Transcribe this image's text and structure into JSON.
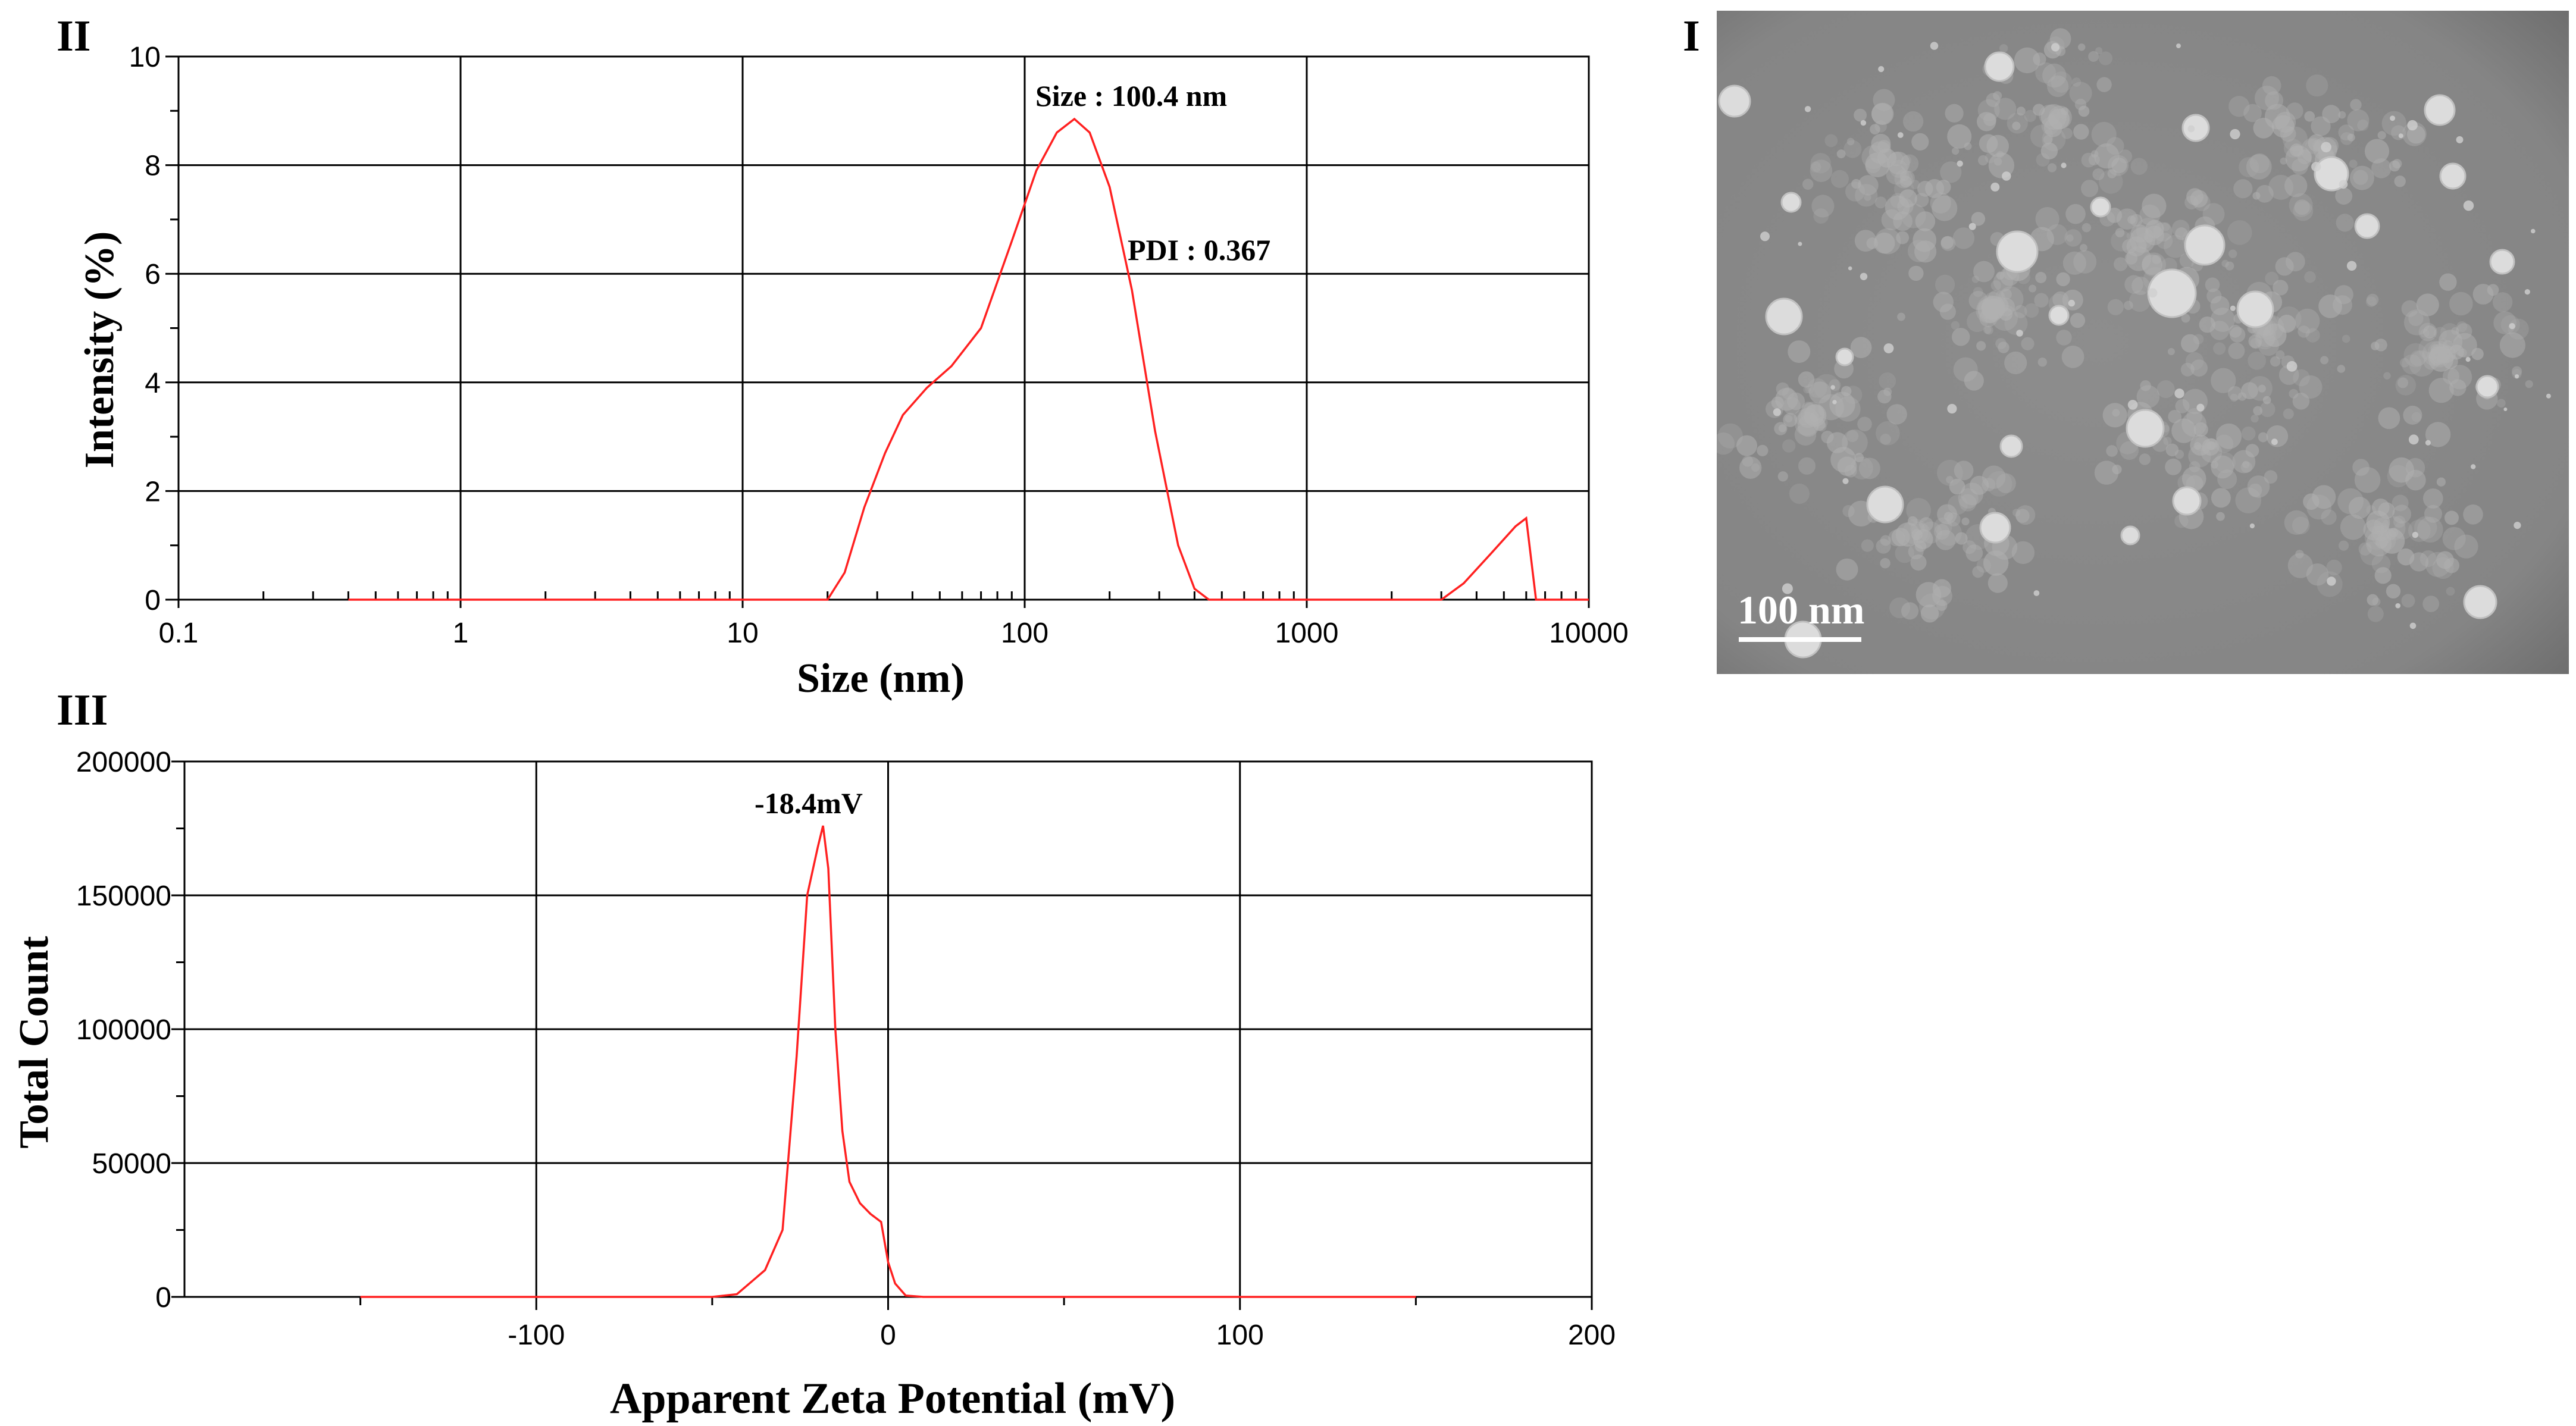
{
  "panels": {
    "size": {
      "letter": "II"
    },
    "zeta": {
      "letter": "III"
    },
    "tem": {
      "letter": "I",
      "scale_bar_label": "100 nm",
      "background_color": "#8a8a8a",
      "particle_color": "#dcdcdc"
    }
  },
  "colors": {
    "series": "#ff2020",
    "grid": "#000000"
  },
  "chart_data": [
    {
      "id": "size",
      "type": "line",
      "xscale": "log",
      "xlim": [
        0.1,
        10000
      ],
      "ylim": [
        0,
        10
      ],
      "xlabel": "Size (nm)",
      "ylabel": "Intensity (%)",
      "xticks": [
        0.1,
        1,
        10,
        100,
        1000,
        10000
      ],
      "xtick_labels": [
        "0.1",
        "1",
        "10",
        "100",
        "1000",
        "10000"
      ],
      "yticks": [
        0,
        2,
        4,
        6,
        8,
        10
      ],
      "ytick_labels": [
        "0",
        "2",
        "4",
        "6",
        "8",
        "10"
      ],
      "grid": true,
      "annotations": [
        {
          "text": "Size : 100.4 nm",
          "x": 140,
          "y": 9.2
        },
        {
          "text": "PDI : 0.367",
          "x": 320,
          "y": 6.3
        }
      ],
      "series": [
        {
          "x": [
            0.4,
            1,
            5,
            10,
            20,
            23,
            27,
            32,
            37,
            45,
            55,
            70,
            90,
            110,
            130,
            150,
            170,
            200,
            240,
            290,
            350,
            400,
            450,
            600,
            1000,
            2000,
            3000,
            3600,
            4500,
            5500,
            6000,
            6500,
            10000
          ],
          "y": [
            0,
            0,
            0,
            0,
            0,
            0.5,
            1.7,
            2.7,
            3.4,
            3.9,
            4.3,
            5.0,
            6.6,
            7.9,
            8.6,
            8.85,
            8.6,
            7.6,
            5.7,
            3.1,
            1.0,
            0.2,
            0,
            0,
            0,
            0,
            0,
            0.3,
            0.85,
            1.35,
            1.5,
            0,
            0
          ]
        }
      ]
    },
    {
      "id": "zeta",
      "type": "line",
      "xlim": [
        -200,
        200
      ],
      "ylim": [
        0,
        200000
      ],
      "xlabel": "Apparent Zeta Potential (mV)",
      "ylabel": "Total Count",
      "xticks": [
        -100,
        0,
        100,
        200
      ],
      "xtick_labels": [
        "-100",
        "0",
        "100",
        "200"
      ],
      "yticks": [
        0,
        50000,
        100000,
        150000,
        200000
      ],
      "ytick_labels": [
        "0",
        "50000",
        "100000",
        "150000",
        "200000"
      ],
      "grid": true,
      "annotations": [
        {
          "text": "-18.4mV",
          "x": -20,
          "y": 185000
        }
      ],
      "series": [
        {
          "x": [
            -150,
            -50,
            -43,
            -35,
            -30,
            -26,
            -23,
            -20,
            -18.5,
            -17,
            -15,
            -13,
            -11,
            -8,
            -5,
            -2,
            0,
            2,
            5,
            10,
            150
          ],
          "y": [
            0,
            0,
            1000,
            10000,
            25000,
            90000,
            150000,
            168000,
            176000,
            160000,
            100000,
            62000,
            43000,
            35000,
            31000,
            28000,
            13000,
            5000,
            500,
            0,
            0
          ]
        }
      ]
    }
  ]
}
